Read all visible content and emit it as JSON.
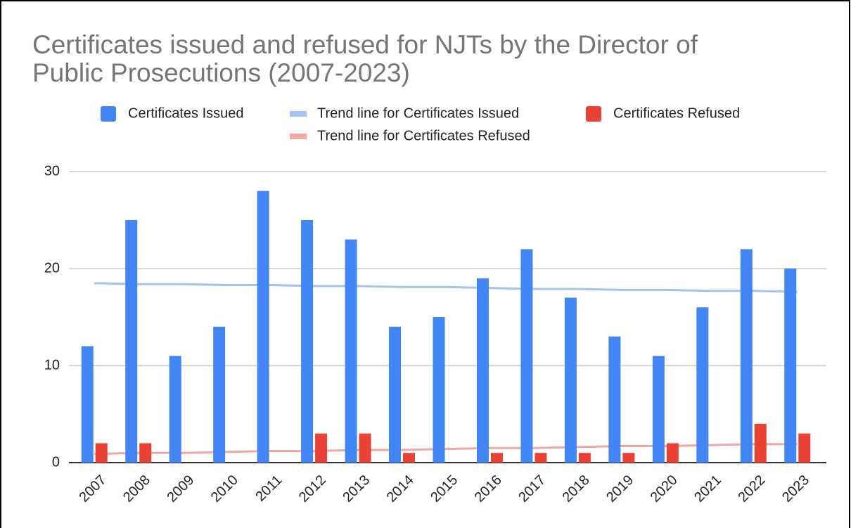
{
  "chart_data": {
    "type": "bar",
    "title": [
      "Certificates issued and refused for NJTs by the Director of",
      "Public Prosecutions (2007-2023)"
    ],
    "categories": [
      "2007",
      "2008",
      "2009",
      "2010",
      "2011",
      "2012",
      "2013",
      "2014",
      "2015",
      "2016",
      "2017",
      "2018",
      "2019",
      "2020",
      "2021",
      "2022",
      "2023"
    ],
    "series": [
      {
        "name": "Certificates Issued",
        "type": "bar",
        "color": "#4285f4",
        "values": [
          12,
          25,
          11,
          14,
          28,
          25,
          23,
          14,
          15,
          19,
          22,
          17,
          13,
          11,
          16,
          22,
          20
        ]
      },
      {
        "name": "Trend line for Certificates Issued",
        "type": "line",
        "color": "#a4c2f4",
        "values": [
          18.5,
          18.4,
          18.4,
          18.3,
          18.3,
          18.2,
          18.2,
          18.1,
          18.1,
          18.0,
          17.9,
          17.9,
          17.8,
          17.8,
          17.7,
          17.7,
          17.6
        ]
      },
      {
        "name": "Certificates Refused",
        "type": "bar",
        "color": "#ea4335",
        "values": [
          2,
          2,
          0,
          0,
          0,
          3,
          3,
          1,
          0,
          1,
          1,
          1,
          1,
          2,
          0,
          4,
          3
        ]
      },
      {
        "name": "Trend line for Certificates Refused",
        "type": "line",
        "color": "#f4a6a0",
        "values": [
          0.9,
          1.0,
          1.0,
          1.1,
          1.2,
          1.2,
          1.3,
          1.3,
          1.4,
          1.5,
          1.5,
          1.6,
          1.7,
          1.7,
          1.8,
          1.9,
          1.9
        ]
      }
    ],
    "ylim": [
      0,
      30
    ],
    "yticks": [
      0,
      10,
      20,
      30
    ],
    "grid": true,
    "legend": "top"
  }
}
